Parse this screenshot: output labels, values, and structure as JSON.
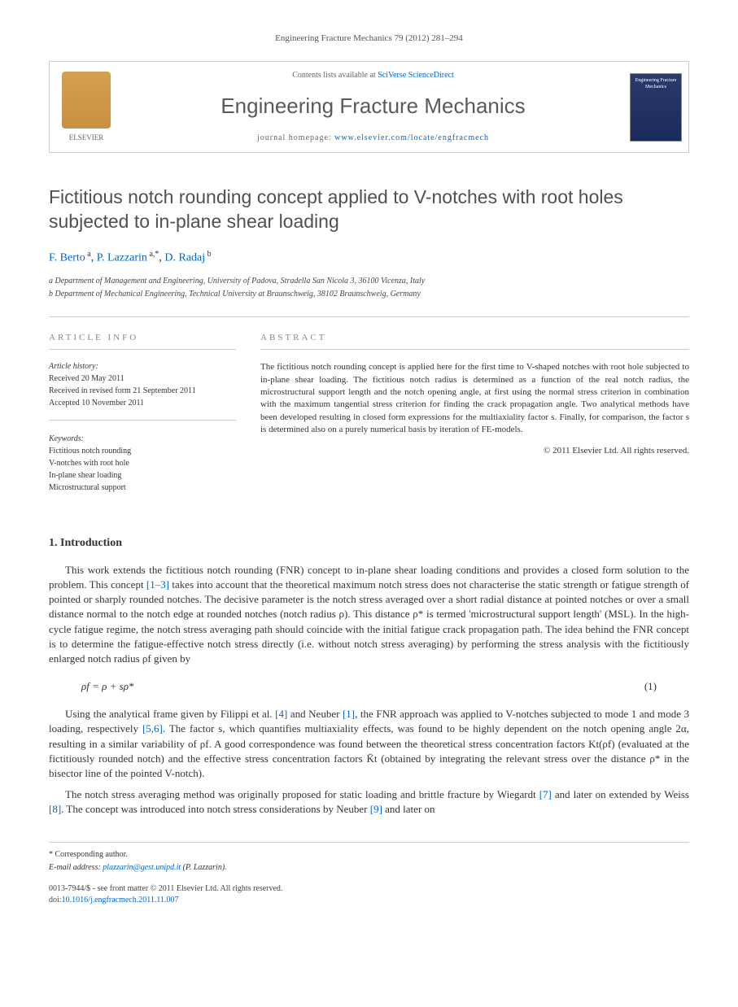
{
  "citation": "Engineering Fracture Mechanics 79 (2012) 281–294",
  "header": {
    "contents_prefix": "Contents lists available at ",
    "contents_link": "SciVerse ScienceDirect",
    "journal_name": "Engineering Fracture Mechanics",
    "homepage_prefix": "journal homepage: ",
    "homepage_url": "www.elsevier.com/locate/engfracmech",
    "publisher": "ELSEVIER",
    "cover_text": "Engineering Fracture Mechanics"
  },
  "title": "Fictitious notch rounding concept applied to V-notches with root holes subjected to in-plane shear loading",
  "authors_html": "F. Berto <sup>a</sup>, P. Lazzarin <sup>a,*</sup>, D. Radaj <sup>b</sup>",
  "affiliations": {
    "a": "a Department of Management and Engineering, University of Padova, Stradella San Nicola 3, 36100 Vicenza, Italy",
    "b": "b Department of Mechanical Engineering, Technical University at Braunschweig, 38102 Braunschweig, Germany"
  },
  "info_labels": {
    "article_info": "ARTICLE INFO",
    "abstract": "ABSTRACT"
  },
  "history": {
    "heading": "Article history:",
    "received": "Received 20 May 2011",
    "revised": "Received in revised form 21 September 2011",
    "accepted": "Accepted 10 November 2011"
  },
  "keywords": {
    "heading": "Keywords:",
    "items": [
      "Fictitious notch rounding",
      "V-notches with root hole",
      "In-plane shear loading",
      "Microstructural support"
    ]
  },
  "abstract": "The fictitious notch rounding concept is applied here for the first time to V-shaped notches with root hole subjected to in-plane shear loading. The fictitious notch radius is determined as a function of the real notch radius, the microstructural support length and the notch opening angle, at first using the normal stress criterion in combination with the maximum tangential stress criterion for finding the crack propagation angle. Two analytical methods have been developed resulting in closed form expressions for the multiaxiality factor s. Finally, for comparison, the factor s is determined also on a purely numerical basis by iteration of FE-models.",
  "abstract_copyright": "© 2011 Elsevier Ltd. All rights reserved.",
  "sections": {
    "intro_heading": "1. Introduction",
    "intro_p1_a": "This work extends the fictitious notch rounding (FNR) concept to in-plane shear loading conditions and provides a closed form solution to the problem. This concept ",
    "intro_p1_ref1": "[1–3]",
    "intro_p1_b": " takes into account that the theoretical maximum notch stress does not characterise the static strength or fatigue strength of pointed or sharply rounded notches. The decisive parameter is the notch stress averaged over a short radial distance at pointed notches or over a small distance normal to the notch edge at rounded notches (notch radius ρ). This distance ρ* is termed 'microstructural support length' (MSL). In the high-cycle fatigue regime, the notch stress averaging path should coincide with the initial fatigue crack propagation path. The idea behind the FNR concept is to determine the fatigue-effective notch stress directly (i.e. without notch stress averaging) by performing the stress analysis with the fictitiously enlarged notch radius ρf given by",
    "equation1": "ρf = ρ + sρ*",
    "eq1_num": "(1)",
    "intro_p2_a": "Using the analytical frame given by Filippi et al. ",
    "intro_p2_ref4": "[4]",
    "intro_p2_b": " and Neuber ",
    "intro_p2_ref1": "[1]",
    "intro_p2_c": ", the FNR approach was applied to V-notches subjected to mode 1 and mode 3 loading, respectively ",
    "intro_p2_ref56": "[5,6]",
    "intro_p2_d": ". The factor s, which quantifies multiaxiality effects, was found to be highly dependent on the notch opening angle 2α, resulting in a similar variability of ρf. A good correspondence was found between the theoretical stress concentration factors Kt(ρf) (evaluated at the fictitiously rounded notch) and the effective stress concentration factors K̄t (obtained by integrating the relevant stress over the distance ρ* in the bisector line of the pointed V-notch).",
    "intro_p3_a": "The notch stress averaging method was originally proposed for static loading and brittle fracture by Wiegardt ",
    "intro_p3_ref7": "[7]",
    "intro_p3_b": " and later on extended by Weiss ",
    "intro_p3_ref8": "[8]",
    "intro_p3_c": ". The concept was introduced into notch stress considerations by Neuber ",
    "intro_p3_ref9": "[9]",
    "intro_p3_d": " and later on"
  },
  "footer": {
    "corresponding": "* Corresponding author.",
    "email_label": "E-mail address: ",
    "email": "plazzarin@gest.unipd.it",
    "email_suffix": " (P. Lazzarin).",
    "meta_line1": "0013-7944/$ - see front matter © 2011 Elsevier Ltd. All rights reserved.",
    "doi_prefix": "doi:",
    "doi": "10.1016/j.engfracmech.2011.11.007"
  },
  "colors": {
    "link": "#0066cc",
    "text": "#333333",
    "heading_grey": "#505050",
    "border": "#cccccc",
    "logo_bg": "#d4a050",
    "cover_bg": "#2a3a6a"
  }
}
